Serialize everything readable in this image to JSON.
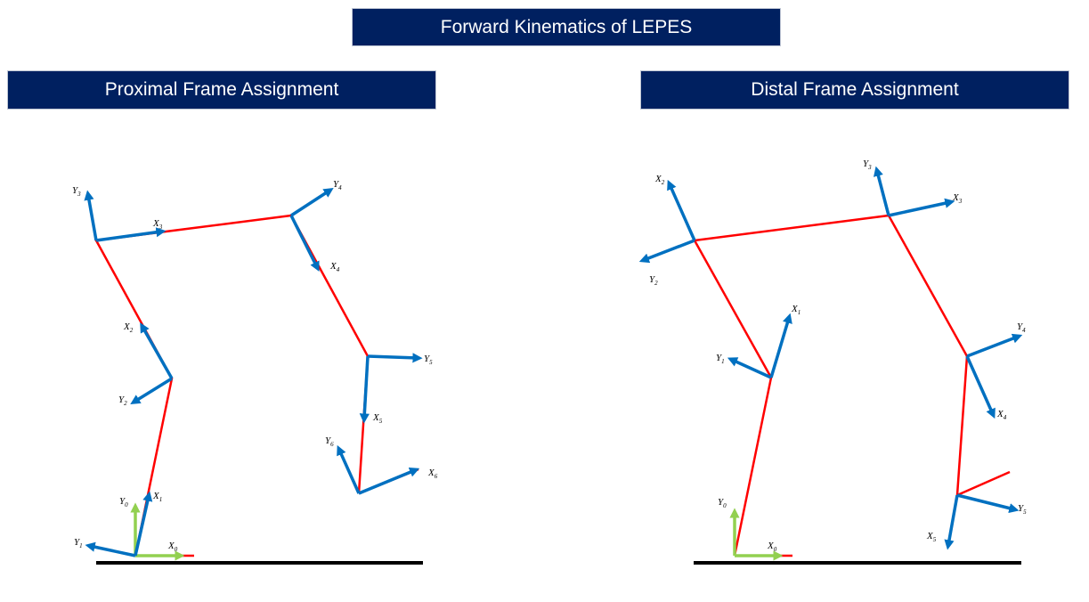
{
  "title": "Forward Kinematics of LEPES",
  "panels": [
    {
      "title": "Proximal Frame Assignment",
      "frame_labels": [
        "Y3",
        "X3",
        "Y4",
        "X4",
        "X2",
        "Y5",
        "Y2",
        "X5",
        "Y6",
        "X6",
        "Y0",
        "X1",
        "Y1",
        "X0"
      ]
    },
    {
      "title": "Distal Frame Assignment",
      "frame_labels": [
        "Y3",
        "X2",
        "X3",
        "Y2",
        "X1",
        "Y4",
        "Y1",
        "X4",
        "Y0",
        "Y5",
        "X5",
        "X0"
      ]
    }
  ],
  "colors": {
    "banner": "#002060",
    "link": "#ff0000",
    "axis": "#0070c0",
    "base_axis": "#92d050",
    "ground": "#000000"
  }
}
